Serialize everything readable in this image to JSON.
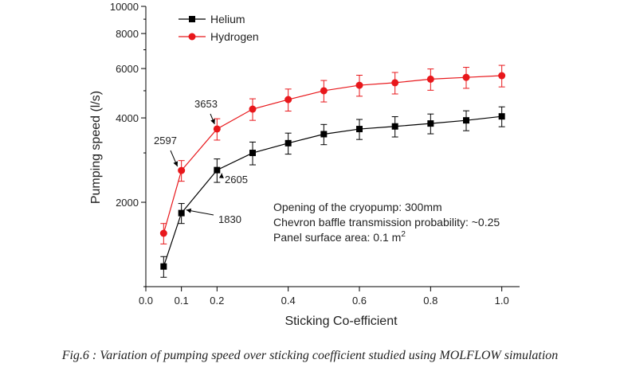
{
  "caption": "Fig.6 : Variation of pumping speed over sticking coefficient studied using  MOLFLOW simulation",
  "chart_data": {
    "type": "line",
    "xlabel": "Sticking Co-efficient",
    "ylabel": "Pumping speed (l/s)",
    "xlim": [
      0.0,
      1.05
    ],
    "ylim": [
      1000,
      10000
    ],
    "yscale": "log",
    "xticks": [
      "0.0",
      "0.1",
      "0.2",
      "0.4",
      "0.6",
      "0.8",
      "1.0"
    ],
    "xtick_values": [
      0.0,
      0.1,
      0.2,
      0.4,
      0.6,
      0.8,
      1.0
    ],
    "yticks": [
      "2000",
      "4000",
      "6000",
      "8000",
      "10000"
    ],
    "ytick_values": [
      2000,
      4000,
      6000,
      8000,
      10000
    ],
    "grid": false,
    "legend_position": "top-left",
    "x": [
      0.05,
      0.1,
      0.2,
      0.3,
      0.4,
      0.5,
      0.6,
      0.7,
      0.8,
      0.9,
      1.0
    ],
    "series": [
      {
        "name": "Helium",
        "color": "#000000",
        "marker": "square",
        "values": [
          1180,
          1830,
          2605,
          3000,
          3250,
          3500,
          3650,
          3730,
          3820,
          3920,
          4050
        ],
        "error": [
          100,
          150,
          250,
          280,
          280,
          290,
          300,
          310,
          310,
          320,
          330
        ]
      },
      {
        "name": "Hydrogen",
        "color": "#e8171b",
        "marker": "circle",
        "values": [
          1550,
          2597,
          3653,
          4300,
          4650,
          5000,
          5230,
          5340,
          5500,
          5580,
          5660
        ],
        "error": [
          130,
          220,
          320,
          380,
          420,
          440,
          450,
          470,
          480,
          480,
          500
        ]
      }
    ],
    "annotations": [
      {
        "text": "1830",
        "series": "Helium",
        "x": 0.1
      },
      {
        "text": "2605",
        "series": "Helium",
        "x": 0.2
      },
      {
        "text": "2597",
        "series": "Hydrogen",
        "x": 0.1
      },
      {
        "text": "3653",
        "series": "Hydrogen",
        "x": 0.2
      }
    ],
    "info_text": [
      "Opening of the cryopump: 300mm",
      "Chevron baffle transmission probability: ~0.25",
      "Panel surface area: 0.1 m",
      "2"
    ]
  }
}
